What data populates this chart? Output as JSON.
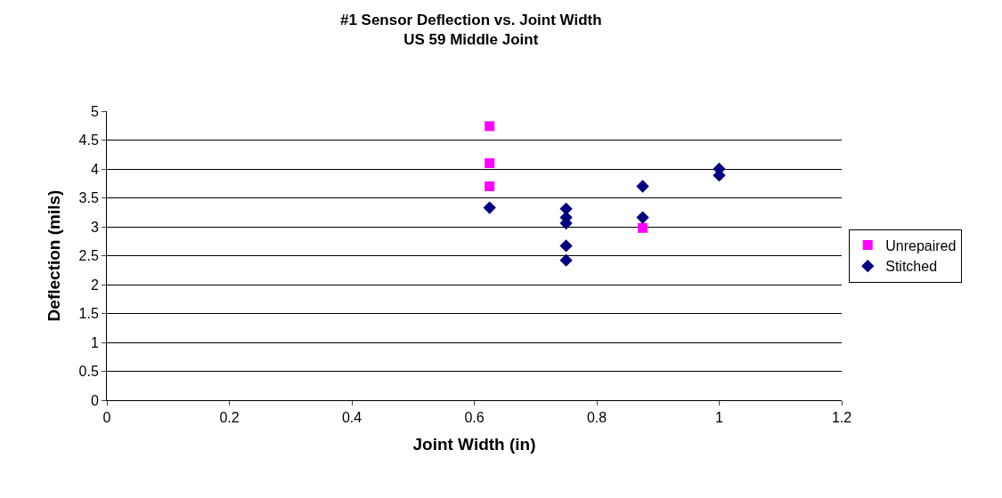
{
  "chart_data": {
    "type": "scatter",
    "title": "#1 Sensor Deflection vs. Joint Width\nUS 59 Middle Joint",
    "xlabel": "Joint Width (in)",
    "ylabel": "Deflection (mils)",
    "series": [
      {
        "name": "Unrepaired",
        "color": "#ff00ff",
        "marker": "square",
        "x": [
          0.625,
          0.625,
          0.625,
          0.875
        ],
        "values": [
          4.74,
          4.1,
          3.7,
          2.98
        ]
      },
      {
        "name": "Stitched",
        "color": "#000080",
        "marker": "diamond",
        "x": [
          0.625,
          0.75,
          0.75,
          0.75,
          0.75,
          0.75,
          0.875,
          0.875,
          1.0,
          1.0
        ],
        "values": [
          3.33,
          3.31,
          3.16,
          3.06,
          2.67,
          2.42,
          3.7,
          3.16,
          4.0,
          3.89
        ]
      }
    ],
    "xlim": [
      0,
      1.2
    ],
    "xticks": [
      0,
      0.2,
      0.4,
      0.6,
      0.8,
      1,
      1.2
    ],
    "ylim": [
      0,
      5
    ],
    "yticks": [
      0,
      0.5,
      1,
      1.5,
      2,
      2.5,
      3,
      3.5,
      4,
      4.5,
      5
    ],
    "grid": "y",
    "legend": "right"
  }
}
